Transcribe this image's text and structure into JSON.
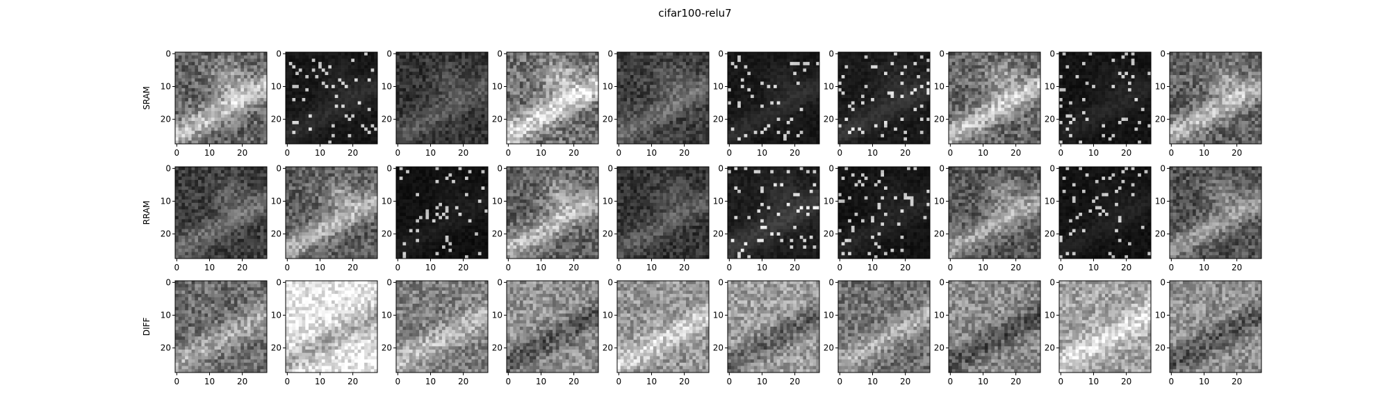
{
  "chart_data": {
    "type": "heatmap",
    "title": "cifar100-relu7",
    "colormap": "gray",
    "grid_rows": 3,
    "grid_cols": 10,
    "row_labels": [
      "SRAM",
      "RRAM",
      "DIFF"
    ],
    "image_size": [
      28,
      28
    ],
    "x_ticks": [
      0,
      10,
      20
    ],
    "y_ticks": [
      0,
      10,
      20
    ],
    "x_tick_labels": [
      "0",
      "10",
      "20"
    ],
    "y_tick_labels": [
      "0",
      "10",
      "20"
    ],
    "xlim": [
      -0.5,
      27.5
    ],
    "ylim": [
      27.5,
      -0.5
    ],
    "panel_brightness": [
      [
        0.42,
        0.1,
        0.18,
        0.48,
        0.22,
        0.1,
        0.12,
        0.42,
        0.08,
        0.4
      ],
      [
        0.22,
        0.38,
        0.06,
        0.4,
        0.18,
        0.14,
        0.08,
        0.35,
        0.07,
        0.32
      ],
      [
        0.5,
        0.85,
        0.58,
        0.5,
        0.66,
        0.55,
        0.52,
        0.48,
        0.72,
        0.5
      ]
    ]
  }
}
